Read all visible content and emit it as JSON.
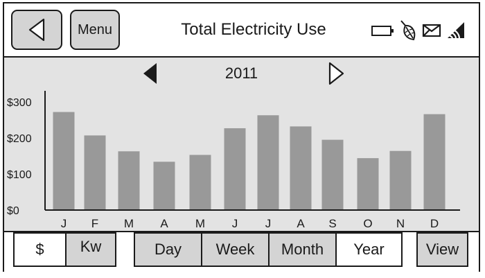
{
  "header": {
    "back_icon": "triangle-left-icon",
    "menu_label": "Menu",
    "title": "Total Electricity Use",
    "status_icons": [
      "battery-icon",
      "leaf-icon",
      "mail-icon",
      "signal-icon"
    ]
  },
  "chart_nav": {
    "year": "2011",
    "prev_icon": "filled-triangle-left-icon",
    "next_icon": "outline-triangle-right-icon"
  },
  "chart_data": {
    "type": "bar",
    "title": "",
    "xlabel": "",
    "ylabel": "",
    "categories": [
      "J",
      "F",
      "M",
      "A",
      "M",
      "J",
      "J",
      "A",
      "S",
      "O",
      "N",
      "D"
    ],
    "values": [
      272,
      207,
      163,
      134,
      153,
      227,
      263,
      232,
      195,
      144,
      164,
      266
    ],
    "y_ticks": [
      "$0",
      "$100",
      "$200",
      "$300"
    ],
    "y_tick_values": [
      0,
      100,
      200,
      300
    ],
    "ylim": [
      0,
      300
    ],
    "grid": false,
    "bar_color": "#999999"
  },
  "units": {
    "dollar_label": "$",
    "kw_label": "Kw",
    "selected": "$"
  },
  "period": {
    "day_label": "Day",
    "week_label": "Week",
    "month_label": "Month",
    "year_label": "Year",
    "selected": "Year"
  },
  "view_label": "View"
}
